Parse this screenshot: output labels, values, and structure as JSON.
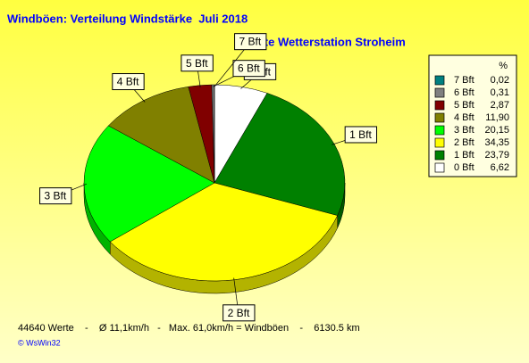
{
  "chart_data": {
    "type": "pie",
    "title": "Windböen: Verteilung Windstärke  Juli 2018",
    "subtitle": "Private Wetterstation Stroheim",
    "legend_header": "%",
    "categories": [
      "0 Bft",
      "1 Bft",
      "2 Bft",
      "3 Bft",
      "4 Bft",
      "5 Bft",
      "6 Bft",
      "7 Bft"
    ],
    "values": [
      6.62,
      23.79,
      34.35,
      20.15,
      11.9,
      2.87,
      0.31,
      0.02
    ],
    "value_labels": [
      "6,62",
      "23,79",
      "34,35",
      "20,15",
      "11,90",
      "2,87",
      "0,31",
      "0,02"
    ],
    "colors": [
      "#ffffff",
      "#008000",
      "#ffff00",
      "#00ff00",
      "#808000",
      "#800000",
      "#808080",
      "#008080"
    ],
    "legend": "right",
    "footer": "44640 Werte    -    Ø 11,1km/h   -   Max. 61,0km/h = Windböen    -    6130.5 km",
    "credit": "© WsWin32"
  }
}
